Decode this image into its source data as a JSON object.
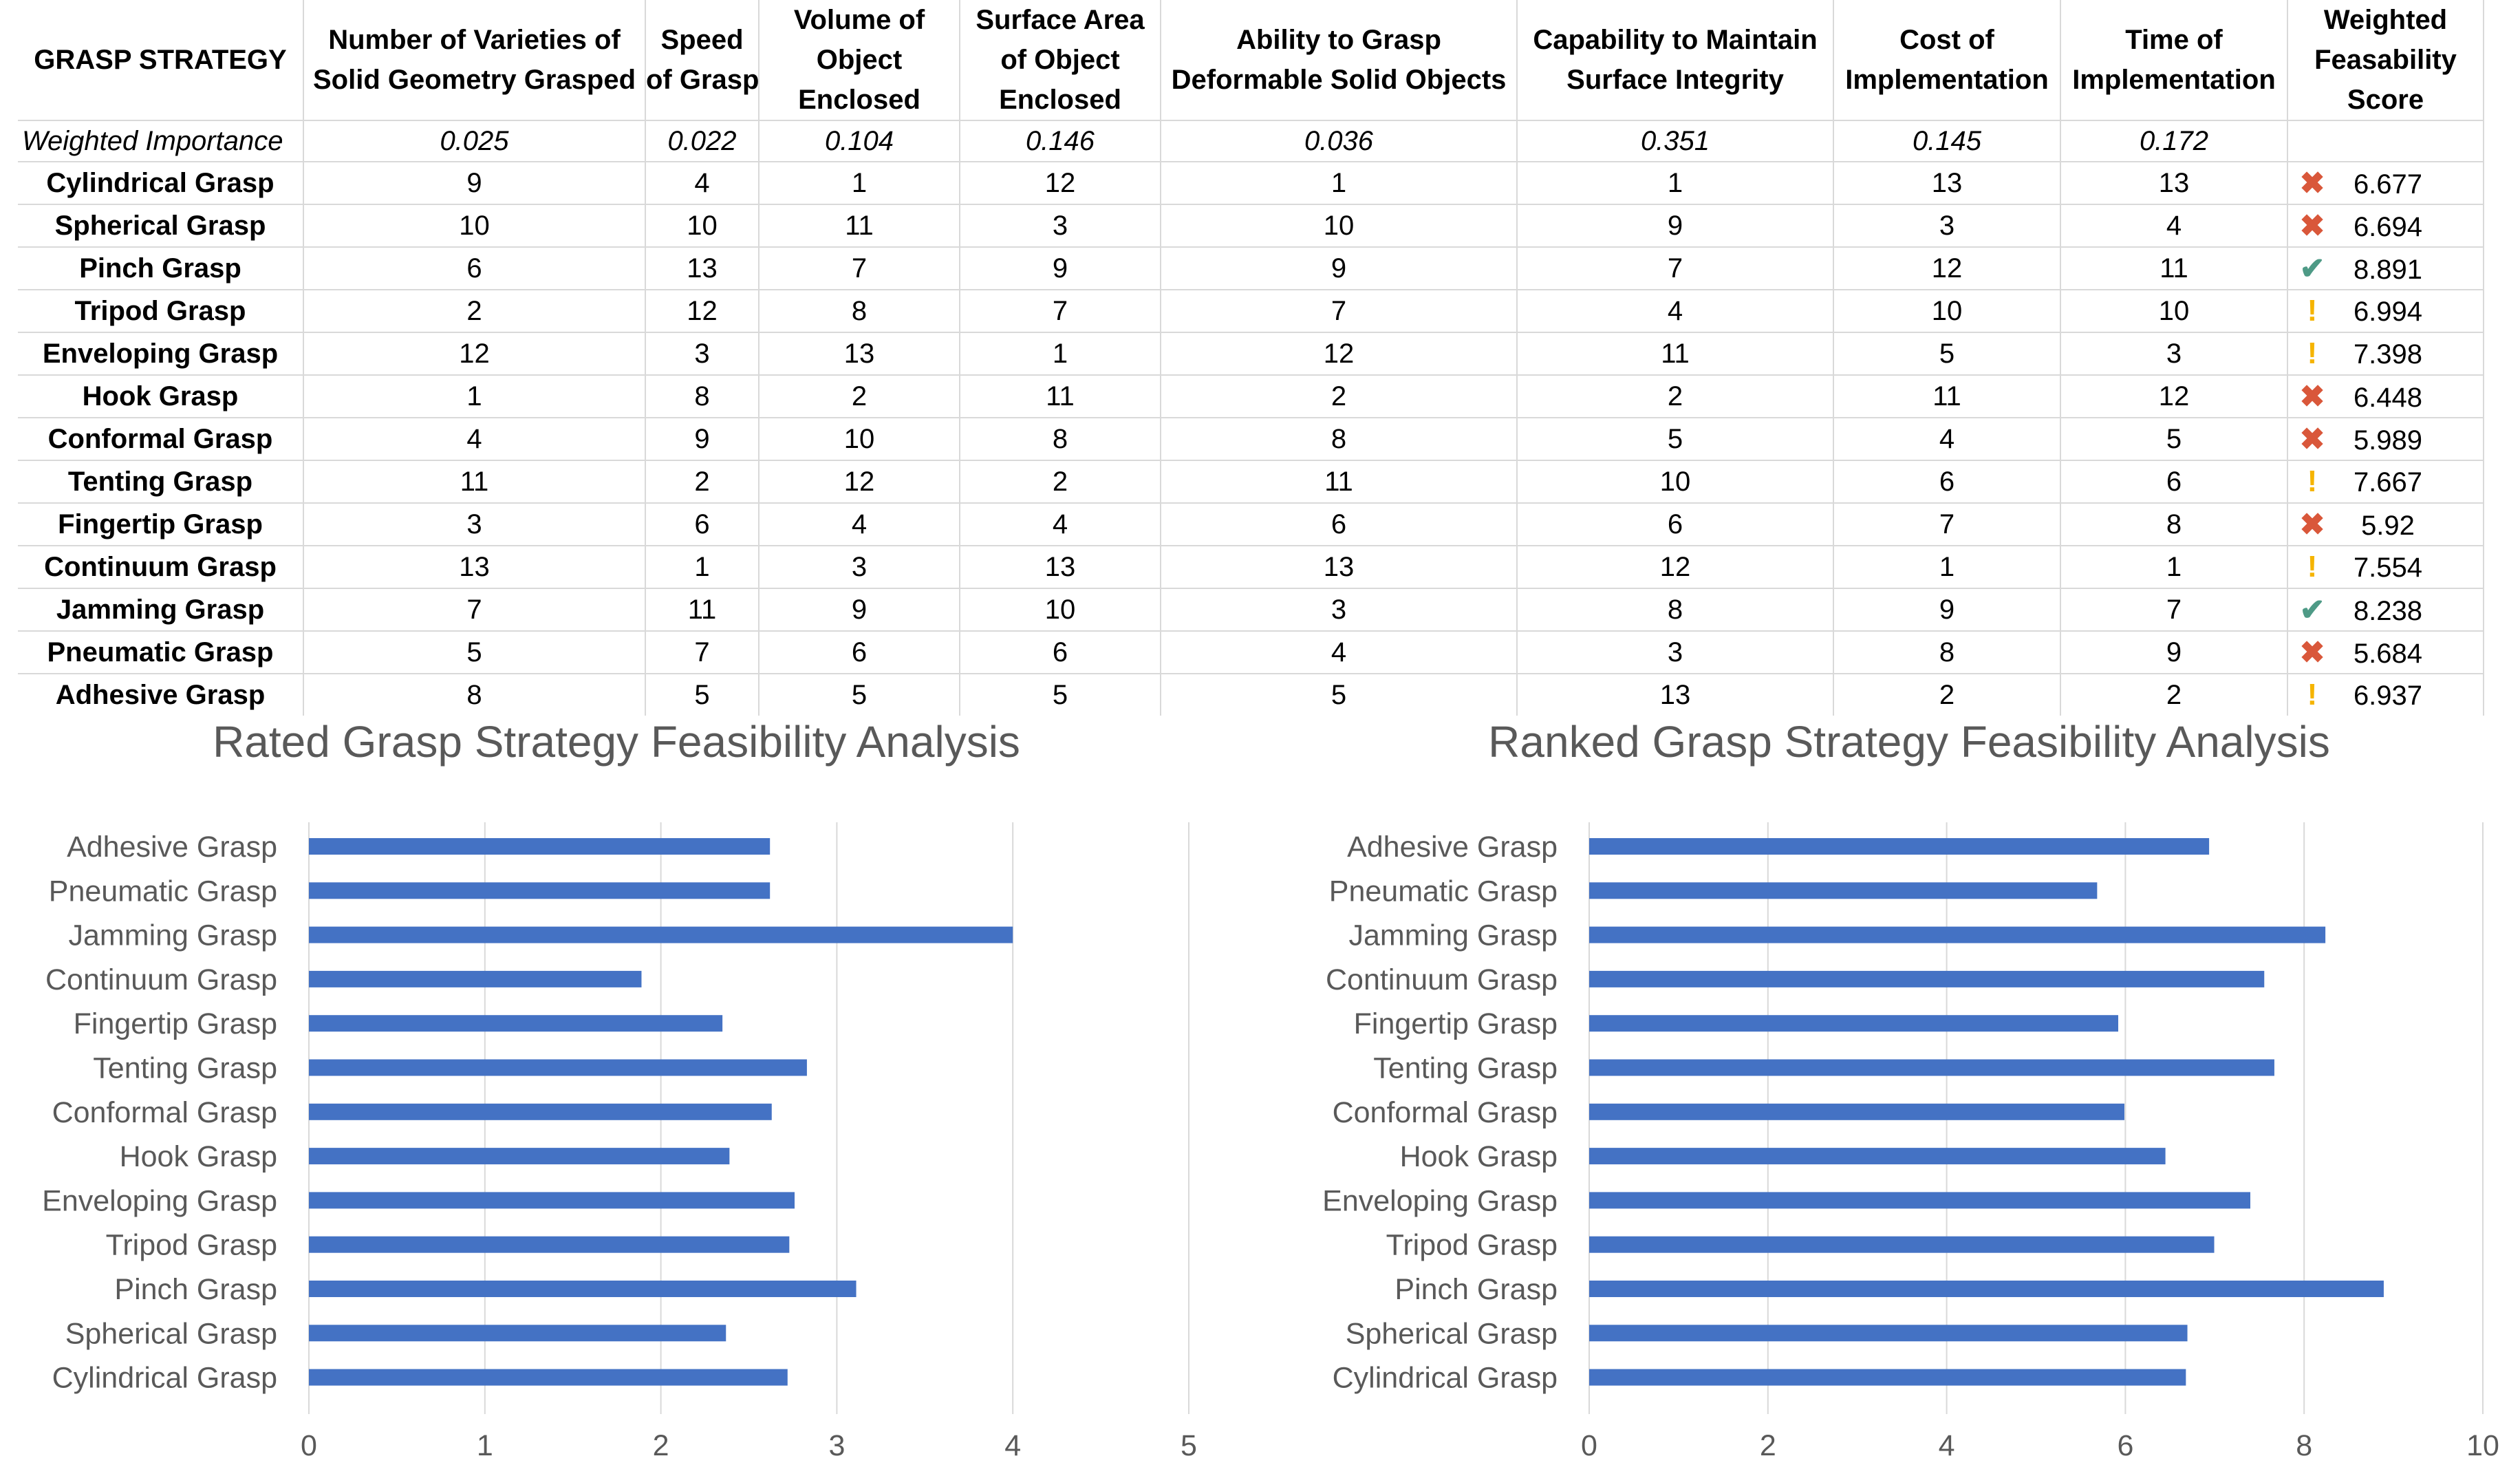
{
  "table": {
    "headers": [
      "GRASP STRATEGY",
      "Number of Varieties of Solid Geometry Grasped",
      "Speed of Grasp",
      "Volume of Object Enclosed",
      "Surface Area of Object Enclosed",
      "Ability to Grasp Deformable Solid Objects",
      "Capability to Maintain Surface Integrity",
      "Cost of Implementation",
      "Time of Implementation",
      "Weighted Feasability Score"
    ],
    "header_lines": [
      [
        "GRASP STRATEGY"
      ],
      [
        "Number of Varieties of",
        "Solid Geometry Grasped"
      ],
      [
        "Speed",
        "of Grasp"
      ],
      [
        "Volume of",
        "Object",
        "Enclosed"
      ],
      [
        "Surface Area",
        "of Object",
        "Enclosed"
      ],
      [
        "Ability to Grasp",
        "Deformable Solid Objects"
      ],
      [
        "Capability to Maintain",
        "Surface Integrity"
      ],
      [
        "Cost of",
        "Implementation"
      ],
      [
        "Time of",
        "Implementation"
      ],
      [
        "Weighted",
        "Feasability",
        "Score"
      ]
    ],
    "weights_label": "Weighted Importance",
    "weights": [
      "0.025",
      "0.022",
      "0.104",
      "0.146",
      "0.036",
      "0.351",
      "0.145",
      "0.172"
    ],
    "rows": [
      {
        "name": "Cylindrical Grasp",
        "values": [
          "9",
          "4",
          "1",
          "12",
          "1",
          "1",
          "13",
          "13"
        ],
        "status": "x",
        "score": "6.677"
      },
      {
        "name": "Spherical Grasp",
        "values": [
          "10",
          "10",
          "11",
          "3",
          "10",
          "9",
          "3",
          "4"
        ],
        "status": "x",
        "score": "6.694"
      },
      {
        "name": "Pinch Grasp",
        "values": [
          "6",
          "13",
          "7",
          "9",
          "9",
          "7",
          "12",
          "11"
        ],
        "status": "check",
        "score": "8.891"
      },
      {
        "name": "Tripod Grasp",
        "values": [
          "2",
          "12",
          "8",
          "7",
          "7",
          "4",
          "10",
          "10"
        ],
        "status": "warn",
        "score": "6.994"
      },
      {
        "name": "Enveloping Grasp",
        "values": [
          "12",
          "3",
          "13",
          "1",
          "12",
          "11",
          "5",
          "3"
        ],
        "status": "warn",
        "score": "7.398"
      },
      {
        "name": "Hook Grasp",
        "values": [
          "1",
          "8",
          "2",
          "11",
          "2",
          "2",
          "11",
          "12"
        ],
        "status": "x",
        "score": "6.448"
      },
      {
        "name": "Conformal Grasp",
        "values": [
          "4",
          "9",
          "10",
          "8",
          "8",
          "5",
          "4",
          "5"
        ],
        "status": "x",
        "score": "5.989"
      },
      {
        "name": "Tenting Grasp",
        "values": [
          "11",
          "2",
          "12",
          "2",
          "11",
          "10",
          "6",
          "6"
        ],
        "status": "warn",
        "score": "7.667"
      },
      {
        "name": "Fingertip Grasp",
        "values": [
          "3",
          "6",
          "4",
          "4",
          "6",
          "6",
          "7",
          "8"
        ],
        "status": "x",
        "score": "5.92"
      },
      {
        "name": "Continuum Grasp",
        "values": [
          "13",
          "1",
          "3",
          "13",
          "13",
          "12",
          "1",
          "1"
        ],
        "status": "warn",
        "score": "7.554"
      },
      {
        "name": "Jamming Grasp",
        "values": [
          "7",
          "11",
          "9",
          "10",
          "3",
          "8",
          "9",
          "7"
        ],
        "status": "check",
        "score": "8.238"
      },
      {
        "name": "Pneumatic Grasp",
        "values": [
          "5",
          "7",
          "6",
          "6",
          "4",
          "3",
          "8",
          "9"
        ],
        "status": "x",
        "score": "5.684"
      },
      {
        "name": "Adhesive Grasp",
        "values": [
          "8",
          "5",
          "5",
          "5",
          "5",
          "13",
          "2",
          "2"
        ],
        "status": "warn",
        "score": "6.937"
      }
    ],
    "status_glyphs": {
      "x": "✖",
      "check": "✔",
      "warn": "!"
    },
    "status_colors": {
      "x": "#d9573a",
      "check": "#4e9a86",
      "warn": "#f5b400"
    }
  },
  "chart_data": [
    {
      "type": "bar",
      "orientation": "horizontal",
      "title": "Rated Grasp Strategy Feasibility Analysis",
      "categories": [
        "Cylindrical Grasp",
        "Spherical Grasp",
        "Pinch Grasp",
        "Tripod Grasp",
        "Enveloping Grasp",
        "Hook Grasp",
        "Conformal Grasp",
        "Tenting Grasp",
        "Fingertip Grasp",
        "Continuum Grasp",
        "Jamming Grasp",
        "Pneumatic Grasp",
        "Adhesive Grasp"
      ],
      "values": [
        2.72,
        2.37,
        3.11,
        2.73,
        2.76,
        2.39,
        2.63,
        2.83,
        2.35,
        1.89,
        4.0,
        2.62,
        2.62
      ],
      "xlim": [
        0,
        5
      ],
      "xticks": [
        "0",
        "1",
        "2",
        "3",
        "4",
        "5"
      ],
      "bar_color": "#4472c4",
      "grid": true
    },
    {
      "type": "bar",
      "orientation": "horizontal",
      "title": "Ranked Grasp Strategy Feasibility Analysis",
      "categories": [
        "Cylindrical Grasp",
        "Spherical Grasp",
        "Pinch Grasp",
        "Tripod Grasp",
        "Enveloping Grasp",
        "Hook Grasp",
        "Conformal Grasp",
        "Tenting Grasp",
        "Fingertip Grasp",
        "Continuum Grasp",
        "Jamming Grasp",
        "Pneumatic Grasp",
        "Adhesive Grasp"
      ],
      "values": [
        6.677,
        6.694,
        8.891,
        6.994,
        7.398,
        6.448,
        5.989,
        7.667,
        5.92,
        7.554,
        8.238,
        5.684,
        6.937
      ],
      "xlim": [
        0,
        10
      ],
      "xticks": [
        "0",
        "2",
        "4",
        "6",
        "8",
        "10"
      ],
      "bar_color": "#4472c4",
      "grid": true
    }
  ]
}
